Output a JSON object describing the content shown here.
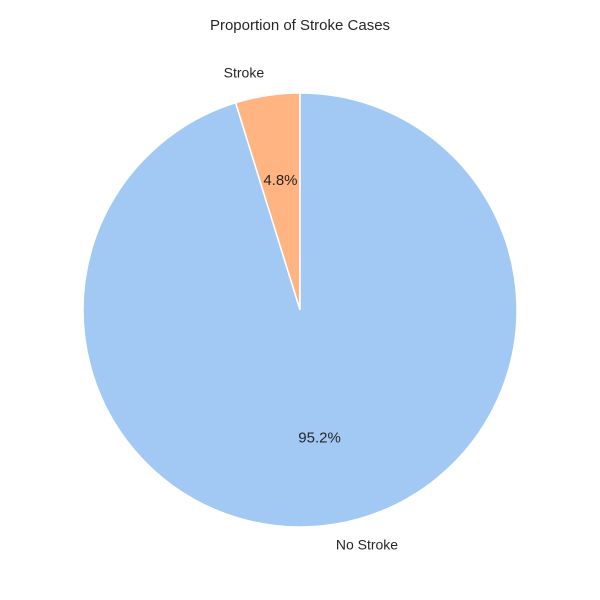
{
  "chart_data": {
    "type": "pie",
    "title": "Proportion of Stroke Cases",
    "categories": [
      "Stroke",
      "No Stroke"
    ],
    "values": [
      4.8,
      95.2
    ],
    "percent_labels": [
      "4.8%",
      "95.2%"
    ],
    "colors": [
      "#ffb482",
      "#a1c9f4"
    ],
    "start_angle_deg": 90,
    "direction": "counterclockwise",
    "legend": "none"
  }
}
